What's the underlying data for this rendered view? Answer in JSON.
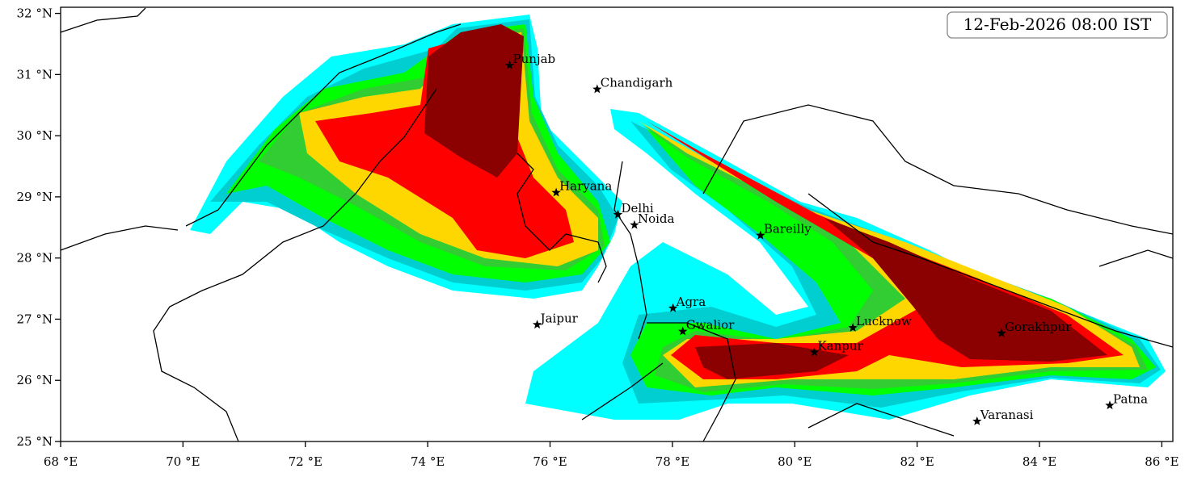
{
  "map_data": {
    "title": "12-Feb-2026 08:00 IST",
    "xlim": [
      68,
      86.18
    ],
    "ylim": [
      25,
      32.1
    ],
    "xticks": [
      {
        "value": 68,
        "label": "68 °E"
      },
      {
        "value": 70,
        "label": "70 °E"
      },
      {
        "value": 72,
        "label": "72 °E"
      },
      {
        "value": 74,
        "label": "74 °E"
      },
      {
        "value": 76,
        "label": "76 °E"
      },
      {
        "value": 78,
        "label": "78 °E"
      },
      {
        "value": 80,
        "label": "80 °E"
      },
      {
        "value": 82,
        "label": "82 °E"
      },
      {
        "value": 84,
        "label": "84 °E"
      },
      {
        "value": 86,
        "label": "86 °E"
      }
    ],
    "yticks": [
      {
        "value": 25,
        "label": "25 °N"
      },
      {
        "value": 26,
        "label": "26 °N"
      },
      {
        "value": 27,
        "label": "27 °N"
      },
      {
        "value": 28,
        "label": "28 °N"
      },
      {
        "value": 29,
        "label": "29 °N"
      },
      {
        "value": 30,
        "label": "30 °N"
      },
      {
        "value": 31,
        "label": "31 °N"
      },
      {
        "value": 32,
        "label": "32 °N"
      }
    ],
    "cities": [
      {
        "name": "Punjab",
        "lon": 75.34,
        "lat": 31.15
      },
      {
        "name": "Chandigarh",
        "lon": 76.77,
        "lat": 30.76
      },
      {
        "name": "Haryana",
        "lon": 76.1,
        "lat": 29.07
      },
      {
        "name": "Delhi",
        "lon": 77.11,
        "lat": 28.71
      },
      {
        "name": "Noida",
        "lon": 77.38,
        "lat": 28.54
      },
      {
        "name": "Bareilly",
        "lon": 79.44,
        "lat": 28.37
      },
      {
        "name": "Agra",
        "lon": 78.01,
        "lat": 27.18
      },
      {
        "name": "Jaipur",
        "lon": 75.79,
        "lat": 26.91
      },
      {
        "name": "Gwalior",
        "lon": 78.17,
        "lat": 26.8
      },
      {
        "name": "Lucknow",
        "lon": 80.95,
        "lat": 26.86
      },
      {
        "name": "Gorakhpur",
        "lon": 83.38,
        "lat": 26.77
      },
      {
        "name": "Kanpur",
        "lon": 80.32,
        "lat": 26.46
      },
      {
        "name": "Varanasi",
        "lon": 82.98,
        "lat": 25.33
      },
      {
        "name": "Patna",
        "lon": 85.15,
        "lat": 25.59
      }
    ]
  }
}
